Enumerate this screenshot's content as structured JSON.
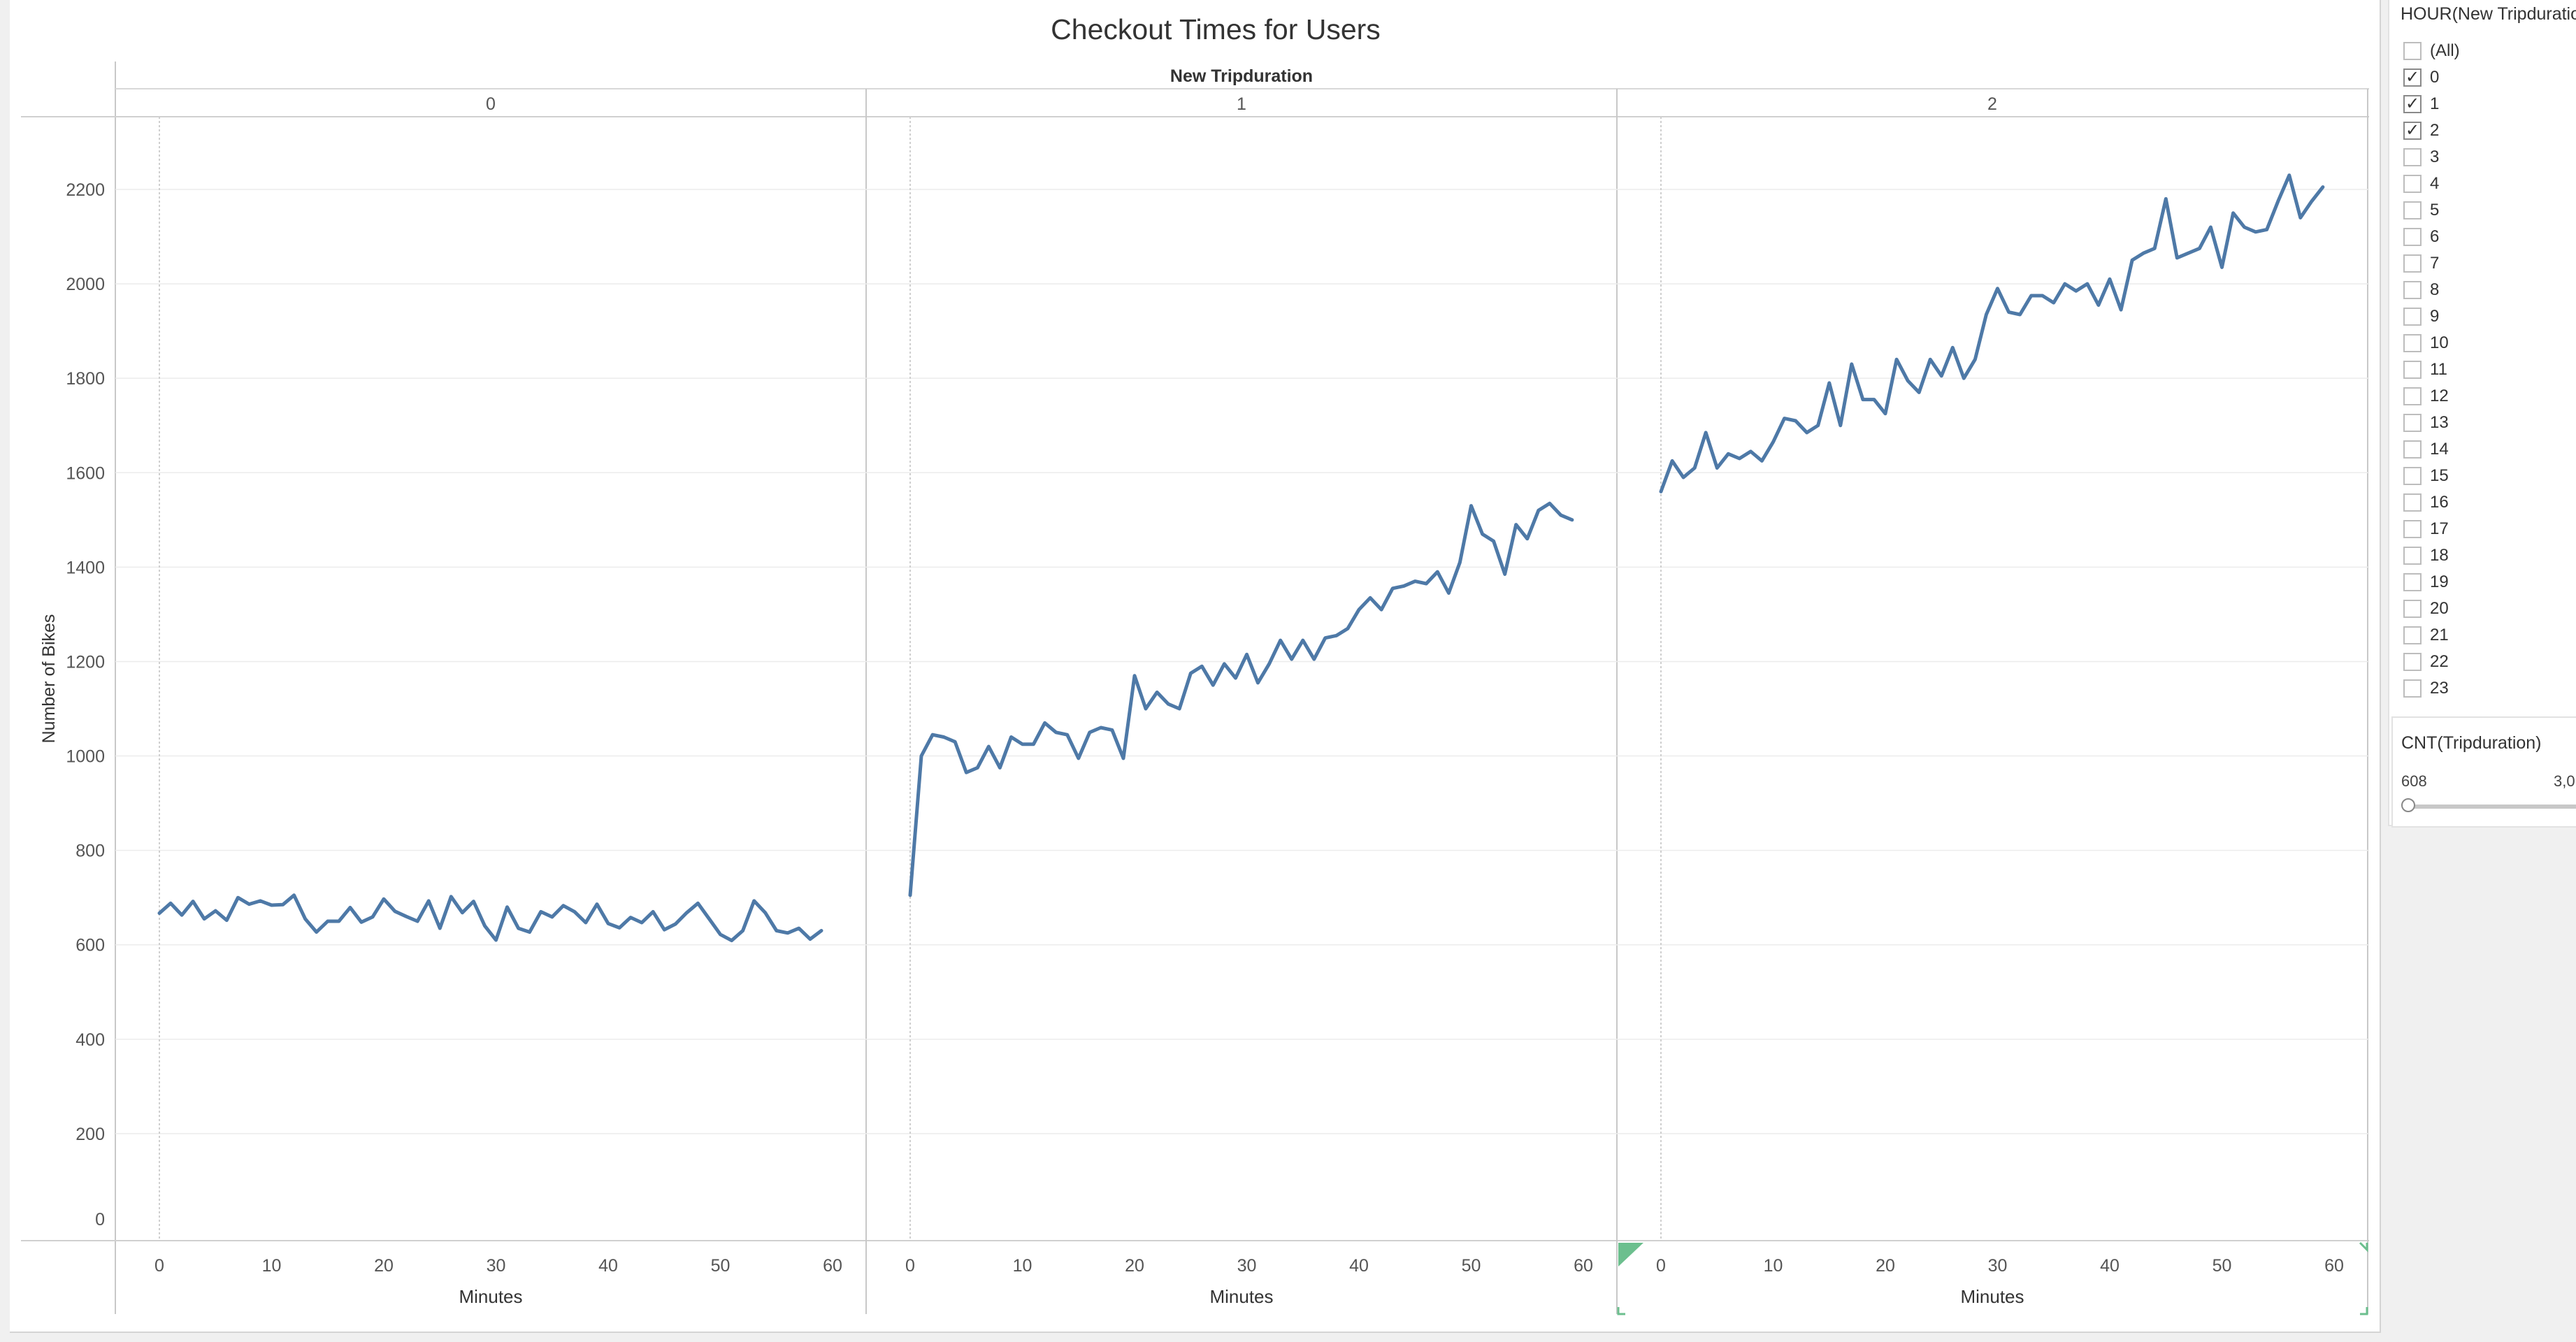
{
  "chart_data": {
    "type": "line",
    "title": "Checkout Times for Users",
    "column_header": "New Tripduration",
    "ylabel": "Number of Bikes",
    "xlabel": "Minutes",
    "ylim": [
      0,
      2300
    ],
    "yticks": [
      0,
      200,
      400,
      600,
      800,
      1000,
      1200,
      1400,
      1600,
      1800,
      2000,
      2200
    ],
    "xlim": [
      -4,
      61
    ],
    "xticks": [
      0,
      10,
      20,
      30,
      40,
      50,
      60
    ],
    "line_color": "#4e79a7",
    "panels": [
      {
        "label": "0",
        "x": [
          0,
          1,
          2,
          3,
          4,
          5,
          6,
          7,
          8,
          9,
          10,
          11,
          12,
          13,
          14,
          15,
          16,
          17,
          18,
          19,
          20,
          21,
          22,
          23,
          24,
          25,
          26,
          27,
          28,
          29,
          30,
          31,
          32,
          33,
          34,
          35,
          36,
          37,
          38,
          39,
          40,
          41,
          42,
          43,
          44,
          45,
          46,
          47,
          48,
          49,
          50,
          51,
          52,
          53,
          54,
          55,
          56,
          57,
          58,
          59
        ],
        "values": [
          667,
          688,
          663,
          692,
          655,
          672,
          652,
          700,
          686,
          693,
          684,
          685,
          705,
          655,
          627,
          650,
          650,
          679,
          648,
          659,
          697,
          671,
          660,
          650,
          693,
          635,
          702,
          668,
          692,
          640,
          610,
          680,
          635,
          627,
          670,
          659,
          683,
          670,
          647,
          686,
          645,
          636,
          658,
          647,
          670,
          632,
          644,
          668,
          688,
          655,
          622,
          609,
          630,
          693,
          668,
          630,
          625,
          635,
          612,
          630
        ]
      },
      {
        "label": "1",
        "x": [
          0,
          1,
          2,
          3,
          4,
          5,
          6,
          7,
          8,
          9,
          10,
          11,
          12,
          13,
          14,
          15,
          16,
          17,
          18,
          19,
          20,
          21,
          22,
          23,
          24,
          25,
          26,
          27,
          28,
          29,
          30,
          31,
          32,
          33,
          34,
          35,
          36,
          37,
          38,
          39,
          40,
          41,
          42,
          43,
          44,
          45,
          46,
          47,
          48,
          49,
          50,
          51,
          52,
          53,
          54,
          55,
          56,
          57,
          58,
          59
        ],
        "values": [
          705,
          1000,
          1045,
          1040,
          1030,
          965,
          975,
          1020,
          975,
          1040,
          1025,
          1025,
          1070,
          1050,
          1045,
          995,
          1050,
          1060,
          1055,
          995,
          1170,
          1100,
          1135,
          1110,
          1100,
          1175,
          1190,
          1150,
          1195,
          1165,
          1215,
          1155,
          1195,
          1245,
          1205,
          1245,
          1205,
          1250,
          1255,
          1270,
          1310,
          1335,
          1310,
          1355,
          1360,
          1370,
          1365,
          1390,
          1345,
          1410,
          1530,
          1470,
          1455,
          1385,
          1490,
          1460,
          1520,
          1535,
          1510,
          1500
        ]
      },
      {
        "label": "2",
        "x": [
          0,
          1,
          2,
          3,
          4,
          5,
          6,
          7,
          8,
          9,
          10,
          11,
          12,
          13,
          14,
          15,
          16,
          17,
          18,
          19,
          20,
          21,
          22,
          23,
          24,
          25,
          26,
          27,
          28,
          29,
          30,
          31,
          32,
          33,
          34,
          35,
          36,
          37,
          38,
          39,
          40,
          41,
          42,
          43,
          44,
          45,
          46,
          47,
          48,
          49,
          50,
          51,
          52,
          53,
          54,
          55,
          56,
          57,
          58,
          59
        ],
        "values": [
          1560,
          1625,
          1590,
          1610,
          1685,
          1610,
          1640,
          1630,
          1645,
          1625,
          1665,
          1715,
          1710,
          1685,
          1700,
          1790,
          1700,
          1830,
          1755,
          1755,
          1725,
          1840,
          1795,
          1770,
          1840,
          1805,
          1865,
          1800,
          1840,
          1935,
          1990,
          1940,
          1935,
          1975,
          1975,
          1960,
          2000,
          1985,
          2000,
          1955,
          2010,
          1945,
          2050,
          2065,
          2075,
          2180,
          2055,
          2065,
          2075,
          2120,
          2035,
          2150,
          2120,
          2110,
          2115,
          2175,
          2230,
          2140,
          2175,
          2205
        ]
      }
    ]
  },
  "filter": {
    "title": "HOUR(New Tripduration)",
    "items": [
      {
        "label": "(All)",
        "checked": false
      },
      {
        "label": "0",
        "checked": true
      },
      {
        "label": "1",
        "checked": true
      },
      {
        "label": "2",
        "checked": true
      },
      {
        "label": "3",
        "checked": false
      },
      {
        "label": "4",
        "checked": false
      },
      {
        "label": "5",
        "checked": false
      },
      {
        "label": "6",
        "checked": false
      },
      {
        "label": "7",
        "checked": false
      },
      {
        "label": "8",
        "checked": false
      },
      {
        "label": "9",
        "checked": false
      },
      {
        "label": "10",
        "checked": false
      },
      {
        "label": "11",
        "checked": false
      },
      {
        "label": "12",
        "checked": false
      },
      {
        "label": "13",
        "checked": false
      },
      {
        "label": "14",
        "checked": false
      },
      {
        "label": "15",
        "checked": false
      },
      {
        "label": "16",
        "checked": false
      },
      {
        "label": "17",
        "checked": false
      },
      {
        "label": "18",
        "checked": false
      },
      {
        "label": "19",
        "checked": false
      },
      {
        "label": "20",
        "checked": false
      },
      {
        "label": "21",
        "checked": false
      },
      {
        "label": "22",
        "checked": false
      },
      {
        "label": "23",
        "checked": false
      }
    ]
  },
  "cnt_filter": {
    "title": "CNT(Tripduration)",
    "min_label": "608",
    "max_label": "3,0"
  }
}
